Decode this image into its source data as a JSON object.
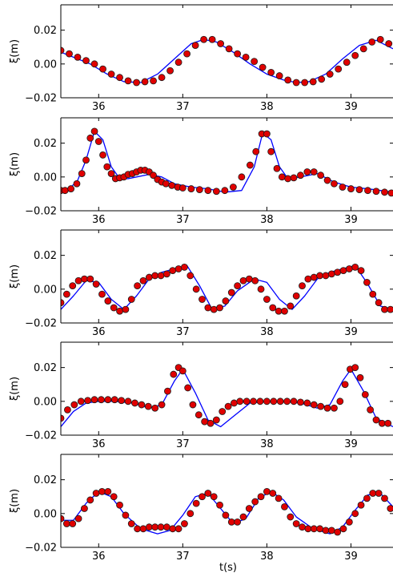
{
  "chart_data": {
    "type": "scatter",
    "xlabel": "t(s)",
    "ylabel": "ξ(m)",
    "x_range": [
      35.55,
      39.5
    ],
    "y_range": [
      -0.02,
      0.035
    ],
    "xticks": [
      36,
      37,
      38,
      39
    ],
    "xtick_labels": [
      "36",
      "37",
      "38",
      "39"
    ],
    "yticks": [
      -0.02,
      0.0,
      0.02
    ],
    "ytick_labels": [
      "−0.02",
      "0.00",
      "0.02"
    ],
    "grid": false,
    "legend": "none",
    "colors": {
      "measured": "#e00000",
      "measured_edge": "#1a1a1a",
      "model": "#0000ff",
      "axes": "#000000"
    },
    "panels": [
      {
        "name": "panel-1",
        "model_line": {
          "x": [
            35.55,
            35.7,
            35.9,
            36.1,
            36.3,
            36.5,
            36.7,
            36.9,
            37.1,
            37.25,
            37.4,
            37.6,
            37.8,
            38.0,
            38.2,
            38.35,
            38.5,
            38.7,
            38.9,
            39.1,
            39.3,
            39.5
          ],
          "y": [
            0.007,
            0.004,
            0.0,
            -0.006,
            -0.0105,
            -0.011,
            -0.006,
            0.003,
            0.012,
            0.0145,
            0.013,
            0.007,
            0.0,
            -0.006,
            -0.0095,
            -0.011,
            -0.0105,
            -0.006,
            0.003,
            0.011,
            0.014,
            0.009
          ]
        },
        "points": {
          "x": [
            35.55,
            35.65,
            35.75,
            35.85,
            35.95,
            36.05,
            36.15,
            36.25,
            36.35,
            36.45,
            36.55,
            36.65,
            36.75,
            36.85,
            36.95,
            37.05,
            37.15,
            37.25,
            37.35,
            37.45,
            37.55,
            37.65,
            37.75,
            37.85,
            37.95,
            38.05,
            38.15,
            38.25,
            38.35,
            38.45,
            38.55,
            38.65,
            38.75,
            38.85,
            38.95,
            39.05,
            39.15,
            39.25,
            39.35,
            39.45
          ],
          "y": [
            0.008,
            0.006,
            0.004,
            0.002,
            0.0,
            -0.003,
            -0.006,
            -0.008,
            -0.01,
            -0.011,
            -0.0105,
            -0.01,
            -0.008,
            -0.004,
            0.001,
            0.006,
            0.011,
            0.0145,
            0.0145,
            0.012,
            0.009,
            0.006,
            0.004,
            0.0015,
            -0.002,
            -0.005,
            -0.007,
            -0.0095,
            -0.011,
            -0.011,
            -0.0105,
            -0.009,
            -0.006,
            -0.003,
            0.001,
            0.005,
            0.009,
            0.013,
            0.0145,
            0.012
          ]
        }
      },
      {
        "name": "panel-2",
        "model_line": {
          "x": [
            35.55,
            35.65,
            35.75,
            35.85,
            35.95,
            36.05,
            36.15,
            36.25,
            36.35,
            36.45,
            36.6,
            36.75,
            36.9,
            37.1,
            37.3,
            37.5,
            37.7,
            37.85,
            37.95,
            38.05,
            38.15,
            38.25,
            38.4,
            38.6,
            38.8,
            39.0,
            39.2,
            39.5
          ],
          "y": [
            -0.009,
            -0.007,
            -0.002,
            0.01,
            0.027,
            0.022,
            0.006,
            -0.001,
            -0.001,
            0.0,
            0.0015,
            0.0,
            -0.004,
            -0.006,
            -0.007,
            -0.009,
            -0.008,
            0.006,
            0.026,
            0.022,
            0.006,
            -0.001,
            0.0,
            0.002,
            -0.003,
            -0.006,
            -0.007,
            -0.009
          ]
        },
        "points": {
          "x": [
            35.55,
            35.6,
            35.67,
            35.74,
            35.8,
            35.85,
            35.9,
            35.95,
            36.0,
            36.05,
            36.1,
            36.15,
            36.2,
            36.25,
            36.3,
            36.35,
            36.4,
            36.45,
            36.5,
            36.55,
            36.6,
            36.65,
            36.7,
            36.75,
            36.8,
            36.87,
            36.94,
            37.0,
            37.1,
            37.2,
            37.3,
            37.4,
            37.5,
            37.6,
            37.7,
            37.8,
            37.87,
            37.94,
            38.0,
            38.05,
            38.12,
            38.18,
            38.25,
            38.32,
            38.4,
            38.48,
            38.56,
            38.64,
            38.72,
            38.8,
            38.9,
            39.0,
            39.1,
            39.2,
            39.3,
            39.4,
            39.48
          ],
          "y": [
            -0.008,
            -0.008,
            -0.007,
            -0.004,
            0.002,
            0.01,
            0.023,
            0.027,
            0.021,
            0.013,
            0.006,
            0.002,
            -0.001,
            -0.0005,
            0.0,
            0.0015,
            0.002,
            0.003,
            0.004,
            0.004,
            0.003,
            0.001,
            -0.0015,
            -0.003,
            -0.004,
            -0.005,
            -0.006,
            -0.0065,
            -0.007,
            -0.0075,
            -0.008,
            -0.0085,
            -0.008,
            -0.006,
            0.0,
            0.007,
            0.015,
            0.0255,
            0.0255,
            0.015,
            0.005,
            0.0,
            -0.001,
            -0.0005,
            0.001,
            0.003,
            0.003,
            0.001,
            -0.002,
            -0.004,
            -0.006,
            -0.007,
            -0.0075,
            -0.008,
            -0.0085,
            -0.009,
            -0.0095
          ]
        }
      },
      {
        "name": "panel-3",
        "model_line": {
          "x": [
            35.55,
            35.7,
            35.85,
            36.0,
            36.15,
            36.3,
            36.45,
            36.6,
            36.75,
            36.9,
            37.05,
            37.2,
            37.35,
            37.5,
            37.65,
            37.85,
            38.0,
            38.15,
            38.3,
            38.45,
            38.6,
            38.75,
            38.9,
            39.05,
            39.2,
            39.35,
            39.5
          ],
          "y": [
            -0.012,
            -0.004,
            0.005,
            0.004,
            -0.006,
            -0.012,
            -0.004,
            0.006,
            0.01,
            0.012,
            0.014,
            0.002,
            -0.012,
            -0.01,
            -0.001,
            0.006,
            0.004,
            -0.006,
            -0.012,
            -0.004,
            0.006,
            0.01,
            0.012,
            0.014,
            0.003,
            -0.01,
            -0.012
          ]
        },
        "points": {
          "x": [
            35.55,
            35.62,
            35.69,
            35.76,
            35.83,
            35.9,
            35.97,
            36.04,
            36.11,
            36.18,
            36.25,
            36.32,
            36.39,
            36.46,
            36.53,
            36.6,
            36.67,
            36.74,
            36.81,
            36.88,
            36.95,
            37.02,
            37.09,
            37.16,
            37.23,
            37.3,
            37.37,
            37.44,
            37.51,
            37.58,
            37.65,
            37.72,
            37.79,
            37.86,
            37.93,
            38.0,
            38.07,
            38.14,
            38.21,
            38.28,
            38.35,
            38.42,
            38.49,
            38.56,
            38.63,
            38.7,
            38.77,
            38.84,
            38.91,
            38.98,
            39.05,
            39.12,
            39.19,
            39.26,
            39.33,
            39.4,
            39.47
          ],
          "y": [
            -0.008,
            -0.003,
            0.002,
            0.005,
            0.006,
            0.006,
            0.003,
            -0.003,
            -0.007,
            -0.011,
            -0.013,
            -0.012,
            -0.006,
            0.002,
            0.005,
            0.007,
            0.008,
            0.008,
            0.009,
            0.011,
            0.012,
            0.013,
            0.008,
            0.0,
            -0.006,
            -0.011,
            -0.012,
            -0.011,
            -0.007,
            -0.002,
            0.002,
            0.005,
            0.006,
            0.005,
            0.0,
            -0.006,
            -0.011,
            -0.013,
            -0.013,
            -0.01,
            -0.004,
            0.002,
            0.006,
            0.007,
            0.008,
            0.008,
            0.009,
            0.01,
            0.011,
            0.012,
            0.013,
            0.011,
            0.004,
            -0.003,
            -0.008,
            -0.012,
            -0.012
          ]
        }
      },
      {
        "name": "panel-4",
        "model_line": {
          "x": [
            35.55,
            35.7,
            35.85,
            36.0,
            36.2,
            36.4,
            36.6,
            36.75,
            36.9,
            37.0,
            37.15,
            37.3,
            37.45,
            37.6,
            37.8,
            38.0,
            38.2,
            38.4,
            38.6,
            38.75,
            38.9,
            39.0,
            39.15,
            39.3,
            39.5
          ],
          "y": [
            -0.015,
            -0.006,
            -0.001,
            0.0,
            0.0,
            -0.001,
            -0.004,
            -0.002,
            0.012,
            0.019,
            0.005,
            -0.011,
            -0.015,
            -0.009,
            -0.001,
            0.0,
            0.0,
            -0.001,
            -0.004,
            -0.002,
            0.012,
            0.019,
            0.006,
            -0.01,
            -0.015
          ]
        },
        "points": {
          "x": [
            35.55,
            35.63,
            35.71,
            35.79,
            35.87,
            35.95,
            36.03,
            36.11,
            36.19,
            36.27,
            36.35,
            36.43,
            36.51,
            36.59,
            36.67,
            36.75,
            36.82,
            36.89,
            36.95,
            37.0,
            37.06,
            37.12,
            37.19,
            37.26,
            37.33,
            37.4,
            37.47,
            37.54,
            37.61,
            37.68,
            37.76,
            37.84,
            37.92,
            38.0,
            38.08,
            38.16,
            38.24,
            38.32,
            38.4,
            38.48,
            38.56,
            38.64,
            38.72,
            38.8,
            38.87,
            38.93,
            38.99,
            39.05,
            39.11,
            39.17,
            39.23,
            39.3,
            39.37,
            39.44
          ],
          "y": [
            -0.01,
            -0.005,
            -0.002,
            0.0,
            0.0005,
            0.001,
            0.001,
            0.001,
            0.001,
            0.0005,
            0.0,
            -0.001,
            -0.002,
            -0.003,
            -0.004,
            -0.002,
            0.006,
            0.016,
            0.02,
            0.018,
            0.008,
            -0.002,
            -0.008,
            -0.012,
            -0.013,
            -0.011,
            -0.006,
            -0.003,
            -0.001,
            0.0,
            0.0,
            0.0,
            0.0,
            0.0,
            0.0,
            0.0,
            0.0,
            0.0,
            -0.0005,
            -0.001,
            -0.002,
            -0.003,
            -0.004,
            -0.004,
            0.0,
            0.01,
            0.019,
            0.02,
            0.014,
            0.004,
            -0.005,
            -0.011,
            -0.013,
            -0.013
          ]
        }
      },
      {
        "name": "panel-5",
        "model_line": {
          "x": [
            35.55,
            35.7,
            35.85,
            36.0,
            36.15,
            36.3,
            36.5,
            36.7,
            36.85,
            37.0,
            37.15,
            37.3,
            37.45,
            37.6,
            37.75,
            37.9,
            38.05,
            38.2,
            38.35,
            38.55,
            38.75,
            38.9,
            39.05,
            39.2,
            39.35,
            39.5
          ],
          "y": [
            -0.004,
            -0.004,
            0.006,
            0.013,
            0.01,
            0.0,
            -0.009,
            -0.012,
            -0.01,
            -0.001,
            0.01,
            0.012,
            0.003,
            -0.006,
            -0.003,
            0.009,
            0.013,
            0.008,
            -0.002,
            -0.009,
            -0.012,
            -0.008,
            0.002,
            0.011,
            0.012,
            0.004
          ]
        },
        "points": {
          "x": [
            35.55,
            35.62,
            35.69,
            35.76,
            35.83,
            35.9,
            35.97,
            36.04,
            36.11,
            36.18,
            36.25,
            36.32,
            36.39,
            36.46,
            36.53,
            36.6,
            36.67,
            36.74,
            36.81,
            36.88,
            36.95,
            37.02,
            37.09,
            37.16,
            37.23,
            37.3,
            37.37,
            37.44,
            37.51,
            37.58,
            37.65,
            37.72,
            37.79,
            37.86,
            37.93,
            38.0,
            38.07,
            38.14,
            38.21,
            38.28,
            38.35,
            38.42,
            38.49,
            38.56,
            38.63,
            38.7,
            38.77,
            38.84,
            38.91,
            38.98,
            39.05,
            39.12,
            39.19,
            39.26,
            39.33,
            39.4,
            39.47
          ],
          "y": [
            -0.003,
            -0.006,
            -0.006,
            -0.003,
            0.003,
            0.008,
            0.012,
            0.013,
            0.013,
            0.01,
            0.005,
            -0.001,
            -0.006,
            -0.009,
            -0.009,
            -0.008,
            -0.008,
            -0.008,
            -0.008,
            -0.009,
            -0.009,
            -0.006,
            0.0,
            0.006,
            0.01,
            0.012,
            0.01,
            0.005,
            -0.001,
            -0.005,
            -0.005,
            -0.002,
            0.003,
            0.007,
            0.01,
            0.013,
            0.012,
            0.009,
            0.004,
            -0.002,
            -0.006,
            -0.008,
            -0.009,
            -0.009,
            -0.009,
            -0.01,
            -0.01,
            -0.011,
            -0.009,
            -0.005,
            0.0,
            0.005,
            0.009,
            0.012,
            0.012,
            0.009,
            0.003
          ]
        }
      }
    ]
  }
}
